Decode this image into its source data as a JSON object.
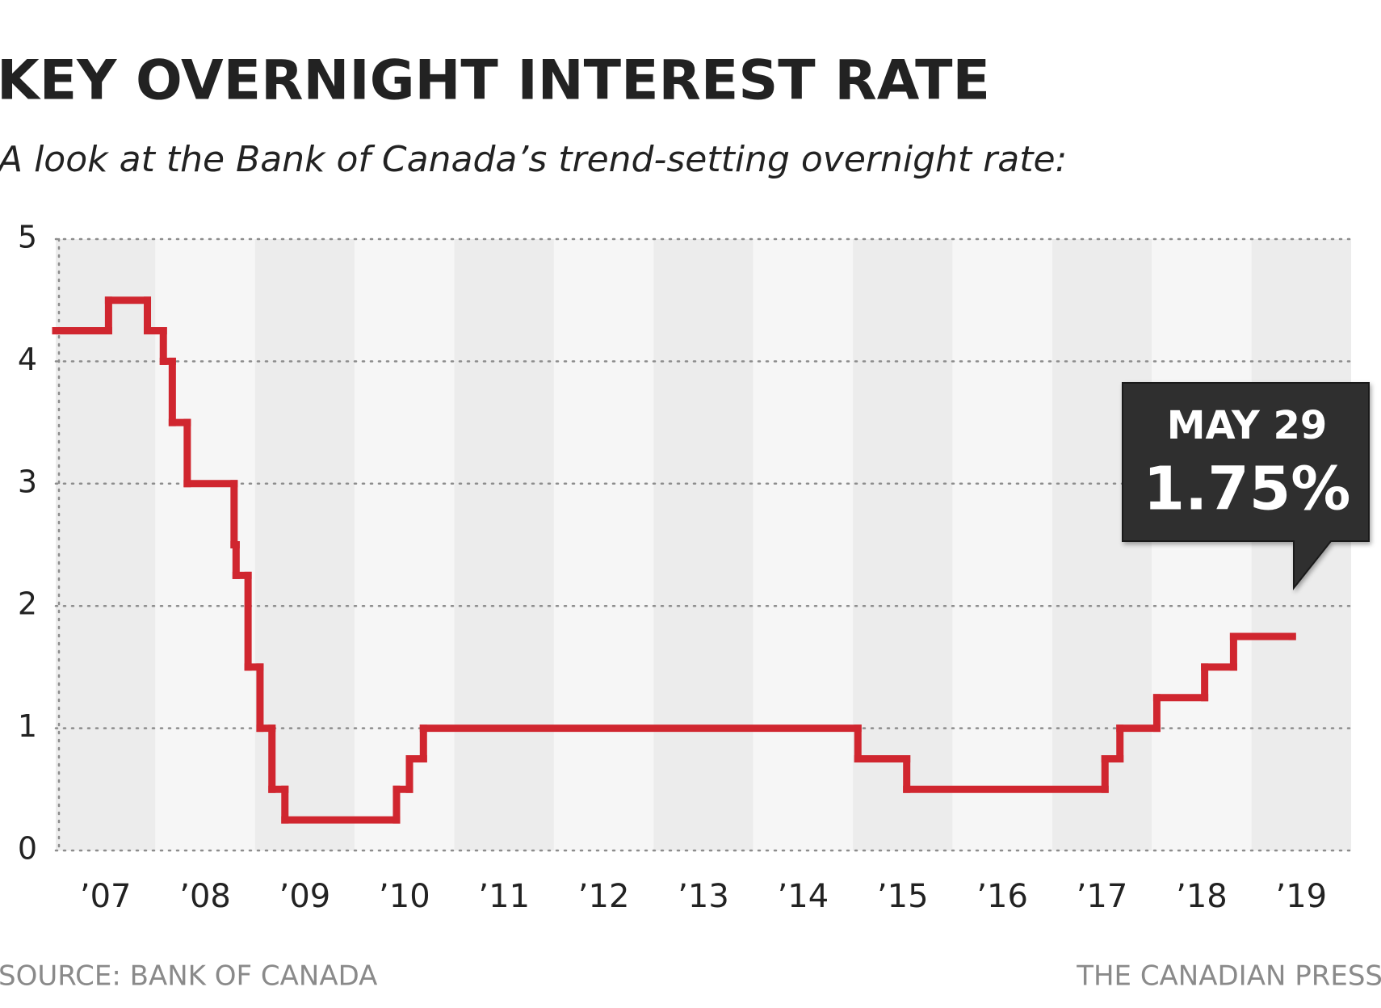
{
  "chart_data": {
    "type": "step",
    "title": "KEY OVERNIGHT INTEREST RATE",
    "subtitle": "A look at the Bank of Canada’s trend-setting overnight rate:",
    "source": "SOURCE: BANK OF CANADA",
    "credit": "THE CANADIAN PRESS",
    "annotation": {
      "date": "MAY 29",
      "value": "1.75%"
    },
    "series": [
      {
        "color": "#d0262f",
        "x": [
          2007.0,
          2007.53,
          2007.92,
          2008.08,
          2008.17,
          2008.32,
          2008.79,
          2008.81,
          2008.93,
          2009.05,
          2009.17,
          2009.3,
          2010.42,
          2010.55,
          2010.69,
          2015.05,
          2015.54,
          2017.53,
          2017.68,
          2018.05,
          2018.53,
          2018.82,
          2019.41
        ],
        "values": [
          4.25,
          4.5,
          4.25,
          4.0,
          3.5,
          3.0,
          2.5,
          2.25,
          1.5,
          1.0,
          0.5,
          0.25,
          0.5,
          0.75,
          1.0,
          0.75,
          0.5,
          0.75,
          1.0,
          1.25,
          1.5,
          1.75,
          1.75
        ]
      }
    ],
    "xlim": [
      2007,
      2020
    ],
    "xticks": [
      {
        "value": 2007.5,
        "label": "’07"
      },
      {
        "value": 2008.5,
        "label": "’08"
      },
      {
        "value": 2009.5,
        "label": "’09"
      },
      {
        "value": 2010.5,
        "label": "’10"
      },
      {
        "value": 2011.5,
        "label": "’11"
      },
      {
        "value": 2012.5,
        "label": "’12"
      },
      {
        "value": 2013.5,
        "label": "’13"
      },
      {
        "value": 2014.5,
        "label": "’14"
      },
      {
        "value": 2015.5,
        "label": "’15"
      },
      {
        "value": 2016.5,
        "label": "’16"
      },
      {
        "value": 2017.5,
        "label": "’17"
      },
      {
        "value": 2018.5,
        "label": "’18"
      },
      {
        "value": 2019.5,
        "label": "’19"
      }
    ],
    "ylim": [
      0,
      5
    ],
    "yticks": [
      0,
      1,
      2,
      3,
      4,
      5
    ],
    "grid": true
  }
}
